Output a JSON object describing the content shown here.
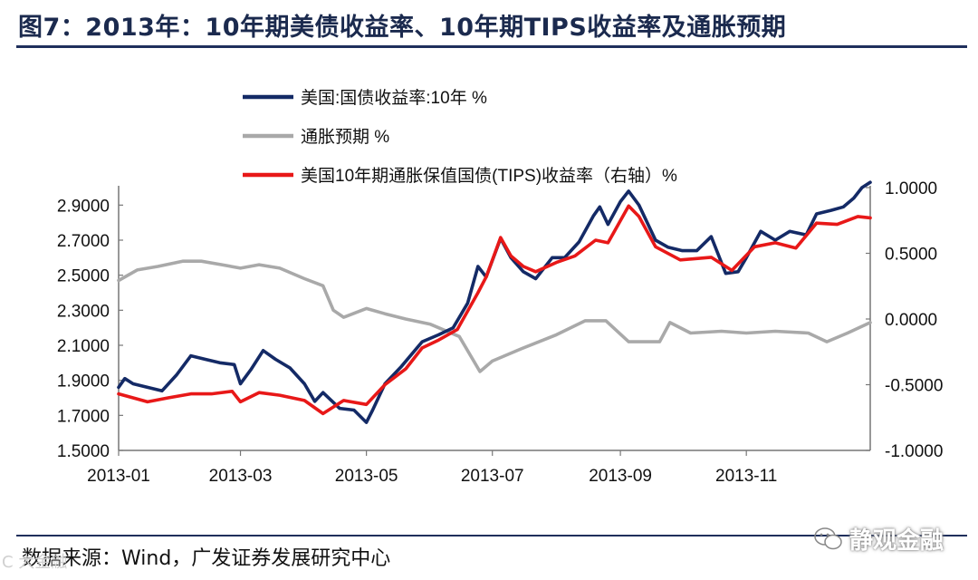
{
  "header": {
    "title": "图7：2013年：10年期美债收益率、10年期TIPS收益率及通胀预期"
  },
  "footer": {
    "source": "数据来源：Wind，广发证券发展研究中心",
    "brand_label": "静观金融",
    "corner_mark": "C 大金融"
  },
  "chart_data": {
    "type": "line",
    "legend_position": "top-center",
    "grid": false,
    "xlim": [
      "2013-01-01",
      "2013-12-31"
    ],
    "x_ticks": [
      "2013-01",
      "2013-03",
      "2013-05",
      "2013-07",
      "2013-09",
      "2013-11"
    ],
    "x_tick_dates": [
      "2013-01-01",
      "2013-03-01",
      "2013-05-01",
      "2013-07-01",
      "2013-09-01",
      "2013-11-01"
    ],
    "y_left": {
      "min": 1.5,
      "max": 3.0,
      "ticks": [
        "1.5000",
        "1.7000",
        "1.9000",
        "2.1000",
        "2.3000",
        "2.5000",
        "2.7000",
        "2.9000"
      ],
      "tick_values": [
        1.5,
        1.7,
        1.9,
        2.1,
        2.3,
        2.5,
        2.7,
        2.9
      ]
    },
    "y_right": {
      "min": -1.0,
      "max": 1.0,
      "ticks": [
        "-1.0000",
        "-0.5000",
        "0.0000",
        "0.5000",
        "1.0000"
      ],
      "tick_values": [
        -1.0,
        -0.5,
        0.0,
        0.5,
        1.0
      ]
    },
    "series": [
      {
        "name": "美国:国债收益率:10年 %",
        "axis": "left",
        "color": "#142a66",
        "points": [
          [
            "2013-01-01",
            1.86
          ],
          [
            "2013-01-04",
            1.91
          ],
          [
            "2013-01-08",
            1.88
          ],
          [
            "2013-01-15",
            1.86
          ],
          [
            "2013-01-22",
            1.84
          ],
          [
            "2013-01-29",
            1.93
          ],
          [
            "2013-02-05",
            2.04
          ],
          [
            "2013-02-12",
            2.02
          ],
          [
            "2013-02-19",
            2.0
          ],
          [
            "2013-02-26",
            1.99
          ],
          [
            "2013-03-01",
            1.88
          ],
          [
            "2013-03-06",
            1.96
          ],
          [
            "2013-03-12",
            2.07
          ],
          [
            "2013-03-18",
            2.02
          ],
          [
            "2013-03-25",
            1.97
          ],
          [
            "2013-04-01",
            1.88
          ],
          [
            "2013-04-06",
            1.78
          ],
          [
            "2013-04-10",
            1.83
          ],
          [
            "2013-04-18",
            1.74
          ],
          [
            "2013-04-25",
            1.73
          ],
          [
            "2013-05-01",
            1.66
          ],
          [
            "2013-05-04",
            1.73
          ],
          [
            "2013-05-10",
            1.88
          ],
          [
            "2013-05-18",
            1.98
          ],
          [
            "2013-05-28",
            2.12
          ],
          [
            "2013-06-05",
            2.16
          ],
          [
            "2013-06-12",
            2.2
          ],
          [
            "2013-06-19",
            2.34
          ],
          [
            "2013-06-24",
            2.55
          ],
          [
            "2013-06-28",
            2.49
          ],
          [
            "2013-07-05",
            2.71
          ],
          [
            "2013-07-10",
            2.6
          ],
          [
            "2013-07-16",
            2.52
          ],
          [
            "2013-07-22",
            2.48
          ],
          [
            "2013-07-30",
            2.6
          ],
          [
            "2013-08-05",
            2.6
          ],
          [
            "2013-08-12",
            2.69
          ],
          [
            "2013-08-19",
            2.84
          ],
          [
            "2013-08-22",
            2.89
          ],
          [
            "2013-08-26",
            2.79
          ],
          [
            "2013-09-01",
            2.92
          ],
          [
            "2013-09-05",
            2.98
          ],
          [
            "2013-09-10",
            2.9
          ],
          [
            "2013-09-18",
            2.7
          ],
          [
            "2013-09-24",
            2.66
          ],
          [
            "2013-10-01",
            2.64
          ],
          [
            "2013-10-08",
            2.64
          ],
          [
            "2013-10-15",
            2.72
          ],
          [
            "2013-10-22",
            2.51
          ],
          [
            "2013-10-28",
            2.52
          ],
          [
            "2013-11-01",
            2.6
          ],
          [
            "2013-11-08",
            2.75
          ],
          [
            "2013-11-15",
            2.7
          ],
          [
            "2013-11-22",
            2.75
          ],
          [
            "2013-11-30",
            2.73
          ],
          [
            "2013-12-05",
            2.85
          ],
          [
            "2013-12-12",
            2.87
          ],
          [
            "2013-12-18",
            2.89
          ],
          [
            "2013-12-23",
            2.94
          ],
          [
            "2013-12-27",
            3.0
          ],
          [
            "2013-12-31",
            3.03
          ]
        ]
      },
      {
        "name": "通胀预期 %",
        "axis": "left",
        "color": "#a9a9a9",
        "points": [
          [
            "2013-01-01",
            2.47
          ],
          [
            "2013-01-10",
            2.53
          ],
          [
            "2013-01-20",
            2.55
          ],
          [
            "2013-02-01",
            2.58
          ],
          [
            "2013-02-10",
            2.58
          ],
          [
            "2013-02-20",
            2.56
          ],
          [
            "2013-03-01",
            2.54
          ],
          [
            "2013-03-10",
            2.56
          ],
          [
            "2013-03-20",
            2.54
          ],
          [
            "2013-04-01",
            2.48
          ],
          [
            "2013-04-10",
            2.44
          ],
          [
            "2013-04-15",
            2.3
          ],
          [
            "2013-04-20",
            2.26
          ],
          [
            "2013-05-01",
            2.31
          ],
          [
            "2013-05-10",
            2.28
          ],
          [
            "2013-05-20",
            2.25
          ],
          [
            "2013-06-01",
            2.22
          ],
          [
            "2013-06-15",
            2.15
          ],
          [
            "2013-06-25",
            1.95
          ],
          [
            "2013-07-01",
            2.01
          ],
          [
            "2013-07-15",
            2.08
          ],
          [
            "2013-08-01",
            2.16
          ],
          [
            "2013-08-15",
            2.24
          ],
          [
            "2013-08-25",
            2.24
          ],
          [
            "2013-09-05",
            2.12
          ],
          [
            "2013-09-20",
            2.12
          ],
          [
            "2013-09-25",
            2.23
          ],
          [
            "2013-10-05",
            2.17
          ],
          [
            "2013-10-20",
            2.18
          ],
          [
            "2013-11-01",
            2.17
          ],
          [
            "2013-11-15",
            2.18
          ],
          [
            "2013-12-01",
            2.17
          ],
          [
            "2013-12-10",
            2.12
          ],
          [
            "2013-12-20",
            2.17
          ],
          [
            "2013-12-31",
            2.23
          ]
        ]
      },
      {
        "name": "美国10年期通胀保值国债(TIPS)收益率（右轴）%",
        "axis": "right",
        "color": "#e81818",
        "points": [
          [
            "2013-01-01",
            -0.57
          ],
          [
            "2013-01-08",
            -0.6
          ],
          [
            "2013-01-15",
            -0.63
          ],
          [
            "2013-01-25",
            -0.6
          ],
          [
            "2013-02-05",
            -0.57
          ],
          [
            "2013-02-15",
            -0.57
          ],
          [
            "2013-02-25",
            -0.55
          ],
          [
            "2013-03-01",
            -0.63
          ],
          [
            "2013-03-10",
            -0.56
          ],
          [
            "2013-03-20",
            -0.58
          ],
          [
            "2013-04-01",
            -0.62
          ],
          [
            "2013-04-10",
            -0.72
          ],
          [
            "2013-04-20",
            -0.62
          ],
          [
            "2013-05-01",
            -0.65
          ],
          [
            "2013-05-10",
            -0.5
          ],
          [
            "2013-05-20",
            -0.38
          ],
          [
            "2013-05-28",
            -0.22
          ],
          [
            "2013-06-05",
            -0.16
          ],
          [
            "2013-06-14",
            -0.08
          ],
          [
            "2013-06-24",
            0.2
          ],
          [
            "2013-06-28",
            0.32
          ],
          [
            "2013-07-05",
            0.62
          ],
          [
            "2013-07-10",
            0.48
          ],
          [
            "2013-07-16",
            0.4
          ],
          [
            "2013-07-22",
            0.36
          ],
          [
            "2013-08-01",
            0.43
          ],
          [
            "2013-08-10",
            0.48
          ],
          [
            "2013-08-20",
            0.6
          ],
          [
            "2013-08-26",
            0.58
          ],
          [
            "2013-09-05",
            0.86
          ],
          [
            "2013-09-10",
            0.78
          ],
          [
            "2013-09-18",
            0.55
          ],
          [
            "2013-09-30",
            0.45
          ],
          [
            "2013-10-15",
            0.47
          ],
          [
            "2013-10-25",
            0.37
          ],
          [
            "2013-11-05",
            0.55
          ],
          [
            "2013-11-15",
            0.58
          ],
          [
            "2013-11-25",
            0.54
          ],
          [
            "2013-12-05",
            0.73
          ],
          [
            "2013-12-15",
            0.72
          ],
          [
            "2013-12-25",
            0.78
          ],
          [
            "2013-12-31",
            0.77
          ]
        ]
      }
    ]
  }
}
